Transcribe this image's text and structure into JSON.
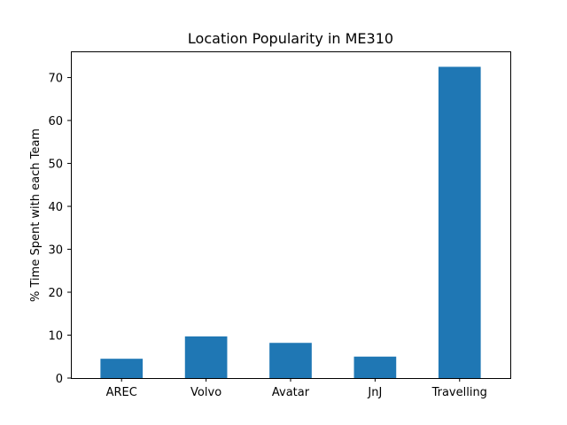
{
  "chart_data": {
    "type": "bar",
    "title": "Location Popularity in ME310",
    "xlabel": "",
    "ylabel": "% Time Spent with each Team",
    "categories": [
      "AREC",
      "Volvo",
      "Avatar",
      "JnJ",
      "Travelling"
    ],
    "values": [
      4.5,
      9.7,
      8.2,
      5.0,
      72.5
    ],
    "ylim": [
      0,
      76.1
    ],
    "yticks": [
      0,
      10,
      20,
      30,
      40,
      50,
      60,
      70
    ],
    "bar_color": "#1f77b4",
    "grid": false,
    "legend": "none"
  }
}
